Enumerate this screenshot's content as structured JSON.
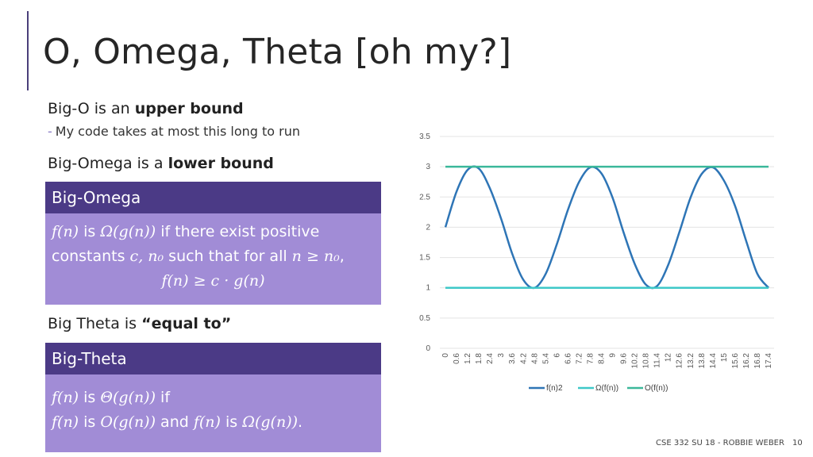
{
  "slide": {
    "title": "O, Omega, Theta [oh my?]",
    "bullet1_prefix": "Big-O is an ",
    "bullet1_em": "upper bound",
    "sub1": "My code takes at most this long to run",
    "sub_dash": "-",
    "bullet2_prefix": "Big-Omega is a ",
    "bullet2_em": "lower bound",
    "bullet3_prefix": "Big Theta is ",
    "bullet3_em": "“equal to”",
    "footer_left": "CSE 332 SU 18 - ROBBIE WEBER",
    "page_number": "10"
  },
  "omega_box": {
    "header": "Big-Omega",
    "line1": {
      "fn": "f(n)",
      "is": " is ",
      "omega": "Ω(g(n))",
      "rest": " if there exist positive"
    },
    "line2": {
      "pre": "constants ",
      "consts": "c, n₀",
      "mid": " such that for all ",
      "cond": "n ≥ n₀",
      "comma": ","
    },
    "line3": "f(n) ≥ c · g(n)"
  },
  "theta_box": {
    "header": "Big-Theta",
    "line1": {
      "fn": "f(n)",
      "is": " is ",
      "theta": "Θ(g(n))",
      "rest": " if"
    },
    "line2": {
      "fn": "f(n)",
      "is": " is ",
      "o": "O(g(n))",
      "and": " and ",
      "fn2": "f(n)",
      "is2": " is ",
      "om": "Ω(g(n))",
      "end": "."
    }
  },
  "chart_data": {
    "type": "line",
    "x": [
      0,
      0.6,
      1.2,
      1.8,
      2.4,
      3,
      3.6,
      4.2,
      4.8,
      5.4,
      6,
      6.6,
      7.2,
      7.8,
      8.4,
      9,
      9.6,
      10.2,
      10.8,
      11.4,
      12,
      12.6,
      13.2,
      13.8,
      14.4,
      15,
      15.6,
      16.2,
      16.8,
      17.4
    ],
    "x_tick_labels": [
      "0",
      "0.6",
      "1.2",
      "1.8",
      "2.4",
      "3",
      "3.6",
      "4.2",
      "4.8",
      "5.4",
      "6",
      "6.6",
      "7.2",
      "7.8",
      "8.4",
      "9",
      "9.6",
      "10.2",
      "10.8",
      "11.4",
      "12",
      "12.6",
      "13.2",
      "13.8",
      "14.4",
      "15",
      "15.6",
      "16.2",
      "16.8",
      "17.4"
    ],
    "series": [
      {
        "name": "f(n)2",
        "color": "#2e75b6",
        "values": [
          2.0,
          2.59,
          2.95,
          2.97,
          2.64,
          2.14,
          1.56,
          1.13,
          1.0,
          1.23,
          1.72,
          2.29,
          2.75,
          2.99,
          2.89,
          2.49,
          1.91,
          1.39,
          1.05,
          1.03,
          1.38,
          1.92,
          2.49,
          2.88,
          2.99,
          2.77,
          2.35,
          1.77,
          1.23,
          1.0
        ]
      },
      {
        "name": "Ω(f(n))",
        "color": "#3ec8c8",
        "values": [
          1,
          1,
          1,
          1,
          1,
          1,
          1,
          1,
          1,
          1,
          1,
          1,
          1,
          1,
          1,
          1,
          1,
          1,
          1,
          1,
          1,
          1,
          1,
          1,
          1,
          1,
          1,
          1,
          1,
          1
        ]
      },
      {
        "name": "O(f(n))",
        "color": "#3bb89a",
        "values": [
          3,
          3,
          3,
          3,
          3,
          3,
          3,
          3,
          3,
          3,
          3,
          3,
          3,
          3,
          3,
          3,
          3,
          3,
          3,
          3,
          3,
          3,
          3,
          3,
          3,
          3,
          3,
          3,
          3,
          3
        ]
      }
    ],
    "y_ticks": [
      "0",
      "0.5",
      "1",
      "1.5",
      "2",
      "2.5",
      "3",
      "3.5"
    ],
    "ylim": [
      0,
      3.5
    ],
    "grid": true,
    "legend_position": "bottom"
  }
}
